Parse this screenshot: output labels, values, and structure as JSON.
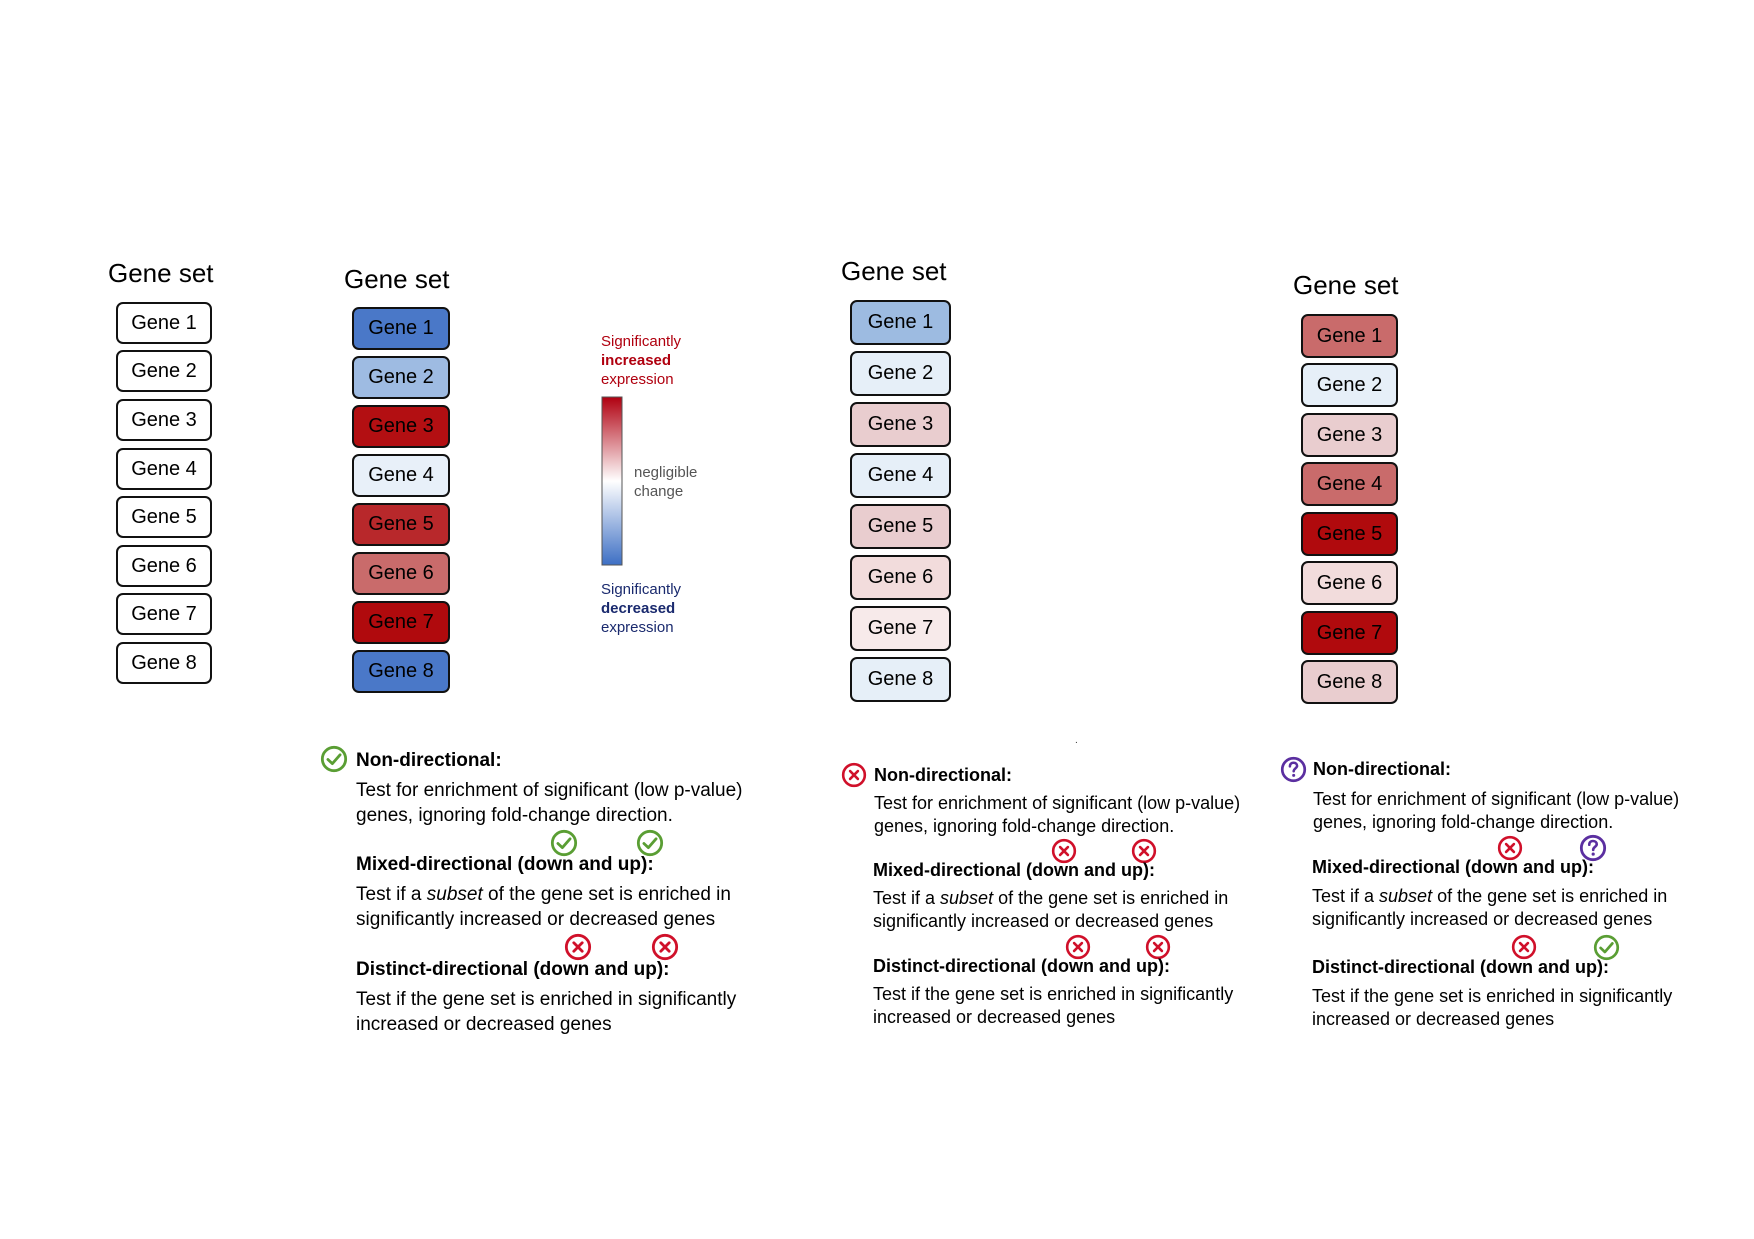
{
  "gene_set_title": "Gene set",
  "legend": {
    "top_line1": "Significantly",
    "top_line2": "increased",
    "top_line3": "expression",
    "mid_line1": "negligible",
    "mid_line2": "change",
    "bottom_line1": "Significantly",
    "bottom_line2": "decreased",
    "bottom_line3": "expression",
    "colors": {
      "up": "#b00010",
      "neutral": "#ffffff",
      "down": "#3d6fc4"
    }
  },
  "panels": [
    {
      "genes": [
        {
          "label": "Gene 1",
          "color": "#ffffff"
        },
        {
          "label": "Gene 2",
          "color": "#ffffff"
        },
        {
          "label": "Gene 3",
          "color": "#ffffff"
        },
        {
          "label": "Gene 4",
          "color": "#ffffff"
        },
        {
          "label": "Gene 5",
          "color": "#ffffff"
        },
        {
          "label": "Gene 6",
          "color": "#ffffff"
        },
        {
          "label": "Gene 7",
          "color": "#ffffff"
        },
        {
          "label": "Gene 8",
          "color": "#ffffff"
        }
      ]
    },
    {
      "genes": [
        {
          "label": "Gene 1",
          "color": "#4a78c8"
        },
        {
          "label": "Gene 2",
          "color": "#9ebbe2"
        },
        {
          "label": "Gene 3",
          "color": "#b30f12"
        },
        {
          "label": "Gene 4",
          "color": "#e8f0f9"
        },
        {
          "label": "Gene 5",
          "color": "#b8282b"
        },
        {
          "label": "Gene 6",
          "color": "#c96b6b"
        },
        {
          "label": "Gene 7",
          "color": "#b00a0d"
        },
        {
          "label": "Gene 8",
          "color": "#4a78c8"
        }
      ],
      "tests": {
        "non_title": "Non-directional:",
        "non_line1": "Test for enrichment of significant (low p-value)",
        "non_line2": "genes, ignoring fold-change direction.",
        "mixed_title": "Mixed-directional (down and up):",
        "mixed_line1_a": "Test if a ",
        "mixed_line1_em": "subset",
        "mixed_line1_b": " of the gene set is enriched in",
        "mixed_line2": "significantly increased or decreased genes",
        "distinct_title": "Distinct-directional (down and up):",
        "distinct_line1": "Test if the gene set is enriched in significantly",
        "distinct_line2": "increased or decreased genes"
      },
      "icons": {
        "non": "check-icon",
        "mixed_down": "check-icon",
        "mixed_up": "check-icon",
        "distinct_down": "cross-icon",
        "distinct_up": "cross-icon"
      }
    },
    {
      "genes": [
        {
          "label": "Gene 1",
          "color": "#9dbbe1"
        },
        {
          "label": "Gene 2",
          "color": "#e6eff8"
        },
        {
          "label": "Gene 3",
          "color": "#e9cdcf"
        },
        {
          "label": "Gene 4",
          "color": "#e6eff8"
        },
        {
          "label": "Gene 5",
          "color": "#e9cdcf"
        },
        {
          "label": "Gene 6",
          "color": "#f2dcdc"
        },
        {
          "label": "Gene 7",
          "color": "#f7eaea"
        },
        {
          "label": "Gene 8",
          "color": "#e6eff8"
        }
      ],
      "tests": {
        "non_title": "Non-directional:",
        "non_line1": "Test for enrichment of significant (low p-value)",
        "non_line2": "genes, ignoring fold-change direction.",
        "mixed_title": "Mixed-directional (down and up):",
        "mixed_line1_a": "Test if a ",
        "mixed_line1_em": "subset",
        "mixed_line1_b": " of the gene set is enriched in",
        "mixed_line2": "significantly increased or decreased genes",
        "distinct_title": "Distinct-directional (down and up):",
        "distinct_line1": "Test if the gene set is enriched in significantly",
        "distinct_line2": "increased or decreased genes"
      },
      "icons": {
        "non": "cross-icon",
        "mixed_down": "cross-icon",
        "mixed_up": "cross-icon",
        "distinct_down": "cross-icon",
        "distinct_up": "cross-icon"
      }
    },
    {
      "genes": [
        {
          "label": "Gene 1",
          "color": "#c96b6b"
        },
        {
          "label": "Gene 2",
          "color": "#e6eff8"
        },
        {
          "label": "Gene 3",
          "color": "#e9cdcf"
        },
        {
          "label": "Gene 4",
          "color": "#c96b6b"
        },
        {
          "label": "Gene 5",
          "color": "#b00a0d"
        },
        {
          "label": "Gene 6",
          "color": "#f2dcdc"
        },
        {
          "label": "Gene 7",
          "color": "#b00a0d"
        },
        {
          "label": "Gene 8",
          "color": "#e9cdcf"
        }
      ],
      "tests": {
        "non_title": "Non-directional:",
        "non_line1": "Test for enrichment of significant (low p-value)",
        "non_line2": "genes, ignoring fold-change direction.",
        "mixed_title": "Mixed-directional (down and up):",
        "mixed_line1_a": "Test if a ",
        "mixed_line1_em": "subset",
        "mixed_line1_b": " of the gene set is enriched in",
        "mixed_line2": "significantly increased or decreased genes",
        "distinct_title": "Distinct-directional (down and up):",
        "distinct_line1": "Test if the gene set is enriched in significantly",
        "distinct_line2": "increased or decreased genes"
      },
      "icons": {
        "non": "question-icon",
        "mixed_down": "cross-icon",
        "mixed_up": "question-icon",
        "distinct_down": "cross-icon",
        "distinct_up": "check-icon"
      }
    }
  ],
  "icon_colors": {
    "check": "#5a9e34",
    "cross": "#d0102a",
    "question": "#5b2fa0"
  }
}
